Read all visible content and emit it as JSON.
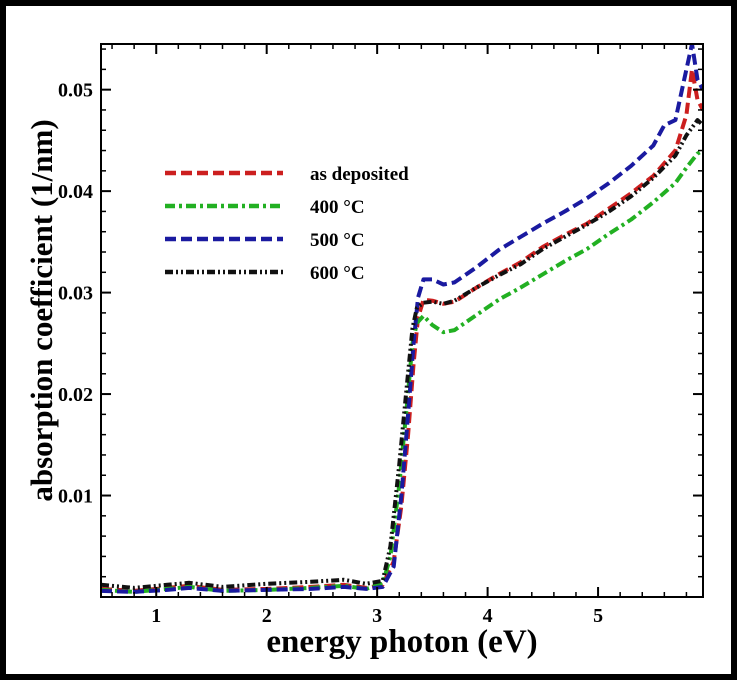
{
  "chart_data": {
    "type": "line",
    "title": "",
    "xlabel": "energy photon (eV)",
    "ylabel": "absorption coefficient (1/nm)",
    "xlim": [
      0.5,
      5.95
    ],
    "ylim": [
      0.0,
      0.0545
    ],
    "xticks": [
      1,
      2,
      3,
      4,
      5
    ],
    "xtick_labels": [
      "1",
      "2",
      "3",
      "4",
      "5"
    ],
    "yticks": [
      0.01,
      0.02,
      0.03,
      0.04,
      0.05
    ],
    "ytick_labels": [
      "0.01",
      "0.02",
      "0.03",
      "0.04",
      "0.05"
    ],
    "legend_position": "upper-left",
    "series": [
      {
        "name": "as deposited",
        "color": "#cc1f1f",
        "dash": "dashed",
        "x": [
          0.5,
          0.8,
          1.1,
          1.3,
          1.6,
          2.0,
          2.4,
          2.7,
          2.9,
          3.05,
          3.15,
          3.22,
          3.28,
          3.33,
          3.37,
          3.42,
          3.5,
          3.6,
          3.7,
          3.9,
          4.1,
          4.3,
          4.5,
          4.7,
          4.9,
          5.1,
          5.3,
          5.5,
          5.7,
          5.8,
          5.85,
          5.9,
          5.95
        ],
        "y": [
          0.0008,
          0.0006,
          0.0009,
          0.0011,
          0.0007,
          0.0008,
          0.001,
          0.0012,
          0.0009,
          0.0012,
          0.0035,
          0.009,
          0.016,
          0.023,
          0.0275,
          0.0293,
          0.0292,
          0.0289,
          0.0291,
          0.0305,
          0.0318,
          0.033,
          0.0345,
          0.0357,
          0.0368,
          0.0383,
          0.0398,
          0.0415,
          0.044,
          0.0475,
          0.052,
          0.049,
          0.048
        ]
      },
      {
        "name": "400 °C",
        "color": "#22b022",
        "dash": "dashdot",
        "x": [
          0.5,
          0.8,
          1.1,
          1.3,
          1.6,
          2.0,
          2.4,
          2.7,
          2.9,
          3.05,
          3.12,
          3.2,
          3.27,
          3.32,
          3.36,
          3.42,
          3.5,
          3.6,
          3.7,
          3.9,
          4.1,
          4.3,
          4.5,
          4.7,
          4.9,
          5.1,
          5.3,
          5.5,
          5.7,
          5.8,
          5.9,
          5.95
        ],
        "y": [
          0.0007,
          0.0005,
          0.0008,
          0.001,
          0.0006,
          0.0007,
          0.0009,
          0.0011,
          0.0008,
          0.0013,
          0.004,
          0.011,
          0.019,
          0.025,
          0.027,
          0.0277,
          0.0268,
          0.0261,
          0.0263,
          0.0278,
          0.0293,
          0.0305,
          0.0318,
          0.0331,
          0.0343,
          0.0358,
          0.0372,
          0.0389,
          0.0408,
          0.0423,
          0.0437,
          0.044
        ]
      },
      {
        "name": "500 °C",
        "color": "#1a1aa0",
        "dash": "dashed",
        "x": [
          0.5,
          0.8,
          1.1,
          1.3,
          1.6,
          2.0,
          2.4,
          2.7,
          2.9,
          3.05,
          3.15,
          3.22,
          3.28,
          3.33,
          3.37,
          3.42,
          3.5,
          3.6,
          3.7,
          3.9,
          4.1,
          4.3,
          4.5,
          4.7,
          4.9,
          5.1,
          5.3,
          5.5,
          5.6,
          5.7,
          5.8,
          5.85,
          5.9,
          5.95
        ],
        "y": [
          0.0006,
          0.0005,
          0.0007,
          0.0009,
          0.0006,
          0.0007,
          0.0008,
          0.001,
          0.0008,
          0.001,
          0.003,
          0.01,
          0.018,
          0.025,
          0.0295,
          0.0313,
          0.0313,
          0.0308,
          0.031,
          0.0325,
          0.0342,
          0.0355,
          0.0368,
          0.038,
          0.0393,
          0.0408,
          0.0425,
          0.0445,
          0.0465,
          0.047,
          0.052,
          0.0545,
          0.051,
          0.05
        ]
      },
      {
        "name": "600 °C",
        "color": "#111111",
        "dash": "dashdotdot",
        "x": [
          0.5,
          0.8,
          1.1,
          1.3,
          1.6,
          2.0,
          2.4,
          2.7,
          2.9,
          3.05,
          3.12,
          3.2,
          3.27,
          3.32,
          3.36,
          3.42,
          3.5,
          3.6,
          3.7,
          3.9,
          4.1,
          4.3,
          4.5,
          4.7,
          4.9,
          5.1,
          5.3,
          5.5,
          5.7,
          5.8,
          5.9,
          5.95
        ],
        "y": [
          0.0012,
          0.0009,
          0.0012,
          0.0014,
          0.001,
          0.0013,
          0.0015,
          0.0017,
          0.0013,
          0.0016,
          0.005,
          0.013,
          0.021,
          0.0265,
          0.0285,
          0.029,
          0.0291,
          0.0289,
          0.0292,
          0.0305,
          0.0317,
          0.0328,
          0.0343,
          0.0355,
          0.0367,
          0.038,
          0.0395,
          0.0413,
          0.0435,
          0.0455,
          0.047,
          0.0465
        ]
      }
    ]
  }
}
